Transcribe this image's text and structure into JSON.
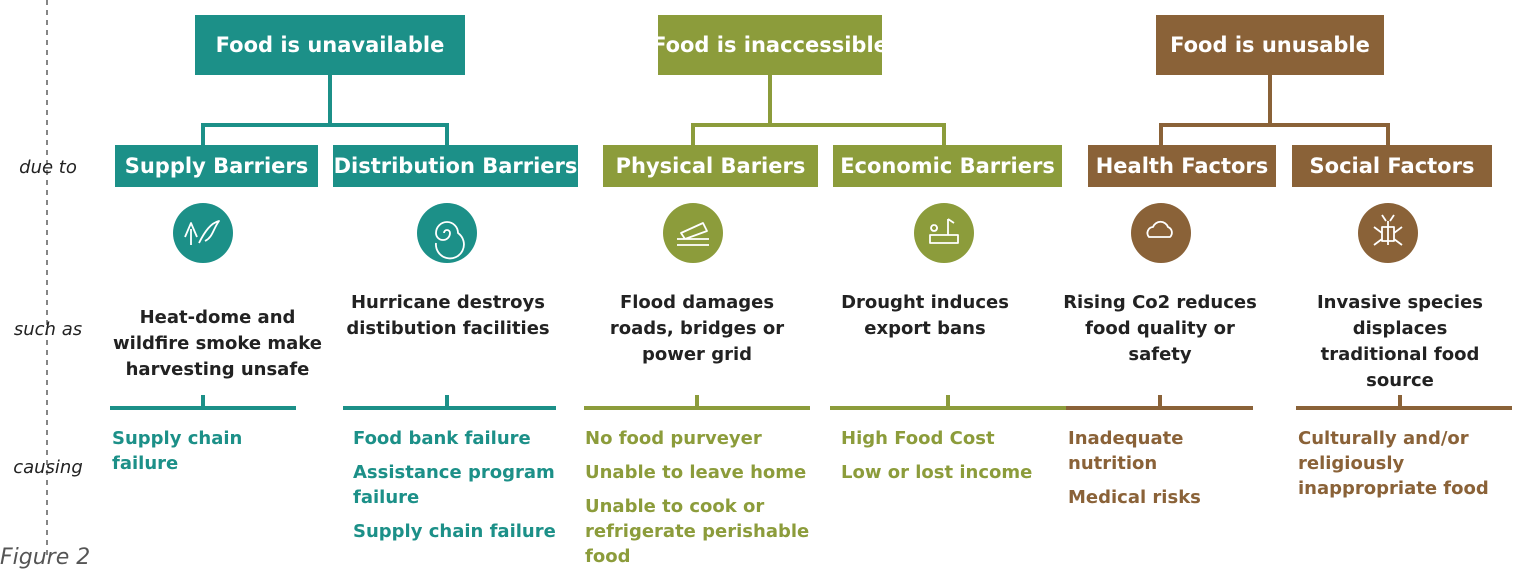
{
  "rows": [
    "due to",
    "such as",
    "causing"
  ],
  "caption": "Figure 2",
  "groups": [
    {
      "title": "Food is unavailable",
      "color": "#1c9088",
      "barriers": [
        {
          "name": "Supply Barriers",
          "example": "Heat-dome and wildfire smoke make harvesting unsafe",
          "effects": [
            "Supply chain failure"
          ]
        },
        {
          "name": "Distribution Barriers",
          "example": "Hurricane destroys distibution facilities",
          "effects": [
            "Food bank failure",
            "Assistance program failure",
            "Supply chain failure"
          ]
        }
      ]
    },
    {
      "title": "Food is inaccessible",
      "color": "#8c9c3b",
      "barriers": [
        {
          "name": "Physical Bariers",
          "example": "Flood damages roads, bridges or power grid",
          "effects": [
            "No food purveyer",
            "Unable to leave home",
            "Unable to cook or refrigerate perishable food"
          ]
        },
        {
          "name": "Economic Barriers",
          "example": "Drought induces export bans",
          "effects": [
            "High Food Cost",
            "Low or lost income"
          ]
        }
      ]
    },
    {
      "title": "Food is unusable",
      "color": "#8a6238",
      "barriers": [
        {
          "name": "Health Factors",
          "example": "Rising Co2 reduces food quality or safety",
          "effects": [
            "Inadequate nutrition",
            "Medical risks"
          ]
        },
        {
          "name": "Social Factors",
          "example": "Invasive species displaces traditional food source",
          "effects": [
            "Culturally and/or religiously inappropriate food"
          ]
        }
      ]
    }
  ]
}
